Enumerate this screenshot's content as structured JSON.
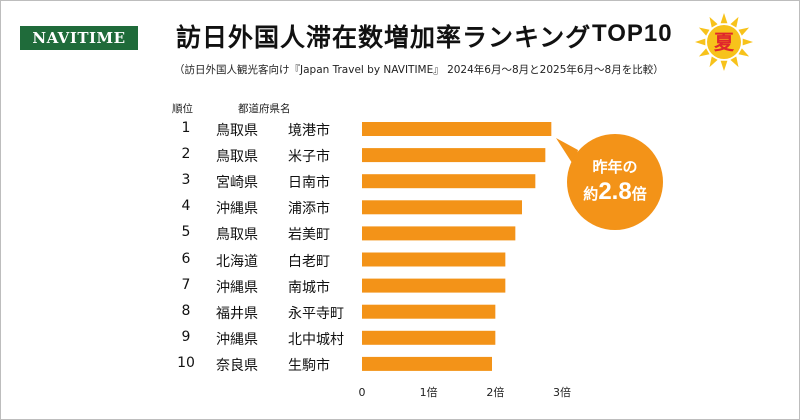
{
  "brand": "NAVITIME",
  "title": "訪日外国人滞在数増加率ランキング",
  "title_suffix": "TOP10",
  "season_badge": "夏",
  "subtitle": "（訪日外国人観光客向け『Japan Travel by NAVITIME』 2024年6月～8月と2025年6月～8月を比較）",
  "headers": {
    "rank": "順位",
    "area": "都道府県名"
  },
  "callout": {
    "line1": "昨年の",
    "prefix": "約",
    "value": "2.8",
    "suffix": "倍"
  },
  "colors": {
    "bar": "#f39318",
    "brand": "#1f6b3a",
    "sun": "#f7c21b"
  },
  "chart_data": {
    "type": "bar",
    "orientation": "horizontal",
    "rows": [
      {
        "rank": "1",
        "prefecture": "鳥取県",
        "city": "境港市"
      },
      {
        "rank": "2",
        "prefecture": "鳥取県",
        "city": "米子市"
      },
      {
        "rank": "3",
        "prefecture": "宮崎県",
        "city": "日南市"
      },
      {
        "rank": "4",
        "prefecture": "沖縄県",
        "city": "浦添市"
      },
      {
        "rank": "5",
        "prefecture": "鳥取県",
        "city": "岩美町"
      },
      {
        "rank": "6",
        "prefecture": "北海道",
        "city": "白老町"
      },
      {
        "rank": "7",
        "prefecture": "沖縄県",
        "city": "南城市"
      },
      {
        "rank": "8",
        "prefecture": "福井県",
        "city": "永平寺町"
      },
      {
        "rank": "9",
        "prefecture": "沖縄県",
        "city": "北中城村"
      },
      {
        "rank": "10",
        "prefecture": "奈良県",
        "city": "生駒市"
      }
    ],
    "values": [
      2.84,
      2.75,
      2.6,
      2.4,
      2.3,
      2.15,
      2.15,
      2.0,
      2.0,
      1.95
    ],
    "xlim": [
      0,
      3
    ],
    "xticks": [
      {
        "value": 0,
        "label": "0"
      },
      {
        "value": 1,
        "label": "1倍"
      },
      {
        "value": 2,
        "label": "2倍"
      },
      {
        "value": 3,
        "label": "3倍"
      }
    ],
    "grid": false
  }
}
